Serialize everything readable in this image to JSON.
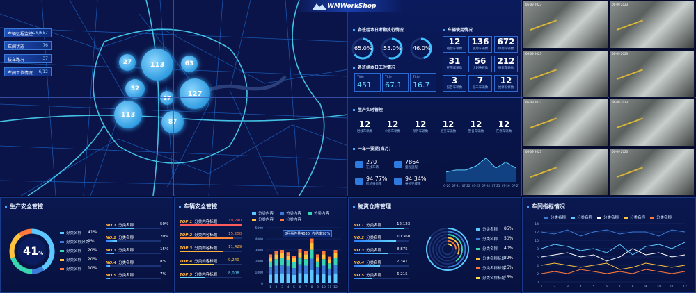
{
  "brand": "WMWorkShop",
  "map": {
    "menu": [
      {
        "label": "车辆远程监控",
        "value": "526/657"
      },
      {
        "label": "车间状态",
        "value": "76"
      },
      {
        "label": "拔车路况",
        "value": "37"
      },
      {
        "label": "车间工位情况",
        "value": "6/12"
      }
    ],
    "bubbles": [
      "27",
      "113",
      "63",
      "52",
      "27",
      "127",
      "113",
      "87"
    ]
  },
  "exec": {
    "title1": "各班组本日考勤执行情况",
    "rings": [
      "65.0%",
      "55.0%",
      "46.0%"
    ],
    "title2": "各班组本日工时情况",
    "boxes": [
      {
        "label": "Title",
        "value": "451"
      },
      {
        "label": "Title",
        "value": "67.1"
      },
      {
        "label": "Title",
        "value": "16.7"
      }
    ]
  },
  "usage": {
    "title": "车辆使用情况",
    "cells": [
      {
        "n": "12",
        "l": "载检车辆数"
      },
      {
        "n": "136",
        "l": "使用车辆数"
      },
      {
        "n": "672",
        "l": "停用车辆数"
      },
      {
        "n": "31",
        "l": "在用车辆数"
      },
      {
        "n": "56",
        "l": "计划维修数"
      },
      {
        "n": "212",
        "l": "报修车辆数"
      },
      {
        "n": "3",
        "l": "报告车辆数"
      },
      {
        "n": "7",
        "l": "返工车辆数"
      },
      {
        "n": "12",
        "l": "维修报修数"
      }
    ]
  },
  "prod": {
    "title": "生产实时管控",
    "cells": [
      {
        "n": "12",
        "l": "进线车辆数"
      },
      {
        "n": "12",
        "l": "小修车辆数"
      },
      {
        "n": "12",
        "l": "保养车辆数"
      },
      {
        "n": "12",
        "l": "验交车辆数"
      },
      {
        "n": "12",
        "l": "整备车辆数"
      },
      {
        "n": "12",
        "l": "在修车辆数"
      }
    ],
    "title2": "一车一要提(当月)",
    "kpis": [
      {
        "n": "270",
        "l": "在线车辆"
      },
      {
        "n": "7864",
        "l": "里程里程"
      },
      {
        "n": "94.77%",
        "l": "检验报修率"
      },
      {
        "n": "94.34%",
        "l": "维修完成率"
      }
    ],
    "area_x": [
      "07-20",
      "07-21",
      "07-22",
      "07-23",
      "07-24",
      "07-25",
      "07-26",
      "07-27"
    ]
  },
  "cams": [
    "06-09 2023",
    "06-09 2023",
    "06-09 2023",
    "06-09 2023",
    "06-09 2023",
    "06-09 2023",
    "06-09 2023",
    "06-09 2023"
  ],
  "safety": {
    "title": "生产安全管控",
    "center": "41",
    "center_unit": "%",
    "legend": [
      {
        "label": "分类名称",
        "value": "41%",
        "color": "#5cc8ff"
      },
      {
        "label": "分类名称分类",
        "value": "9%",
        "color": "#3a7bd8"
      },
      {
        "label": "分类名称",
        "value": "20%",
        "color": "#37d6b0"
      },
      {
        "label": "分类名称",
        "value": "20%",
        "color": "#ffc23c"
      },
      {
        "label": "分类名称",
        "value": "10%",
        "color": "#ff7a3c"
      }
    ],
    "ranks": [
      {
        "no": "NO.1",
        "label": "分类名称",
        "value": "50%",
        "frac": 0.5
      },
      {
        "no": "NO.2",
        "label": "分类名称",
        "value": "20%",
        "frac": 0.2
      },
      {
        "no": "NO.3",
        "label": "分类名称",
        "value": "15%",
        "frac": 0.15
      },
      {
        "no": "NO.4",
        "label": "分类名称",
        "value": "8%",
        "frac": 0.08
      },
      {
        "no": "NO.5",
        "label": "分类名称",
        "value": "7%",
        "frac": 0.07
      }
    ]
  },
  "vehicle": {
    "title": "车辆安全管控",
    "ranks": [
      {
        "no": "TOP 1",
        "label": "分类内容标题",
        "value": "19,240",
        "color": "#ff5a5a"
      },
      {
        "no": "TOP 2",
        "label": "分类内容标题",
        "value": "15,200",
        "color": "#ff8a3c"
      },
      {
        "no": "TOP 3",
        "label": "分类内容标题",
        "value": "11,429",
        "color": "#ffb23c"
      },
      {
        "no": "TOP 4",
        "label": "分类内容标题",
        "value": "9,240",
        "color": "#ffd23c"
      },
      {
        "no": "TOP 5",
        "label": "分类内容标题",
        "value": "8,008",
        "color": "#63d7ff"
      }
    ],
    "legend": [
      "分类内容",
      "分类内容",
      "分类内容",
      "分类内容",
      "分类内容"
    ],
    "tooltip": "8月事件量4030, 办结率98%",
    "yticks": [
      "5000",
      "4000",
      "3000",
      "2000",
      "1000",
      "0"
    ],
    "xticks": [
      "1",
      "2",
      "3",
      "4",
      "5",
      "6",
      "7",
      "8",
      "9",
      "10",
      "11",
      "12"
    ]
  },
  "stock": {
    "title": "物资仓库管理",
    "ranks": [
      {
        "no": "NO.1",
        "label": "分类名称",
        "value": "12,123"
      },
      {
        "no": "NO.2",
        "label": "分类名称",
        "value": "10,360"
      },
      {
        "no": "NO.3",
        "label": "分类名称",
        "value": "8,875"
      },
      {
        "no": "NO.4",
        "label": "分类名称",
        "value": "7,341"
      },
      {
        "no": "NO.5",
        "label": "分类名称",
        "value": "6,215"
      }
    ],
    "legend": [
      {
        "label": "分类名称",
        "value": "85%",
        "color": "#5cc8ff"
      },
      {
        "label": "分类名称",
        "value": "50%",
        "color": "#3a7bd8"
      },
      {
        "label": "分类名称",
        "value": "40%",
        "color": "#37d6b0"
      },
      {
        "label": "分类名称标题",
        "value": "32%",
        "color": "#ffc23c"
      },
      {
        "label": "分类名称标题",
        "value": "25%",
        "color": "#ff7a3c"
      },
      {
        "label": "分类名称标题",
        "value": "15%",
        "color": "#ffe14a"
      }
    ]
  },
  "workshop": {
    "title": "车间指标情况",
    "yticks": [
      "14",
      "12",
      "10",
      "8",
      "6",
      "4",
      "2",
      "0"
    ],
    "xticks": [
      "1",
      "2",
      "3",
      "4",
      "5",
      "6",
      "7",
      "8",
      "9",
      "10",
      "11",
      "12"
    ]
  },
  "chart_data": [
    {
      "type": "area",
      "categories": [
        "07-20",
        "07-21",
        "07-22",
        "07-23",
        "07-24",
        "07-25",
        "07-26",
        "07-27"
      ],
      "values": [
        5,
        6,
        6,
        8,
        12,
        7,
        10,
        7
      ],
      "title": "",
      "xlabel": "",
      "ylabel": ""
    },
    {
      "type": "bar",
      "categories": [
        "1",
        "2",
        "3",
        "4",
        "5",
        "6",
        "7",
        "8",
        "9",
        "10",
        "11",
        "12"
      ],
      "ylim": [
        0,
        5000
      ],
      "series": [
        {
          "name": "分类内容",
          "values": [
            2600,
            2900,
            3000,
            2800,
            2500,
            3100,
            2900,
            4030,
            2600,
            2900,
            2400,
            3000
          ]
        }
      ],
      "title": "",
      "xlabel": "",
      "ylabel": ""
    },
    {
      "type": "line",
      "categories": [
        "1",
        "2",
        "3",
        "4",
        "5",
        "6",
        "7",
        "8",
        "9",
        "10",
        "11",
        "12"
      ],
      "ylim": [
        0,
        14
      ],
      "series": [
        {
          "name": "分类名称",
          "color": "#3a7bd8",
          "values": [
            12,
            11.5,
            12.5,
            11,
            12,
            12.5,
            11.5,
            12,
            12,
            11,
            12.5,
            12
          ]
        },
        {
          "name": "分类名称",
          "color": "#5cc8ff",
          "values": [
            8,
            9,
            8.5,
            7.5,
            8,
            7,
            9,
            6.5,
            8.5,
            9,
            8,
            9.5
          ]
        },
        {
          "name": "分类名称",
          "color": "#ffffff",
          "values": [
            6,
            6.5,
            7,
            6,
            6.5,
            5,
            6,
            8,
            6.5,
            7,
            6,
            6.5
          ]
        },
        {
          "name": "分类名称",
          "color": "#ffc23c",
          "values": [
            4,
            4.5,
            4,
            3.5,
            4,
            4.5,
            3,
            3.5,
            4.5,
            4,
            3.5,
            4
          ]
        },
        {
          "name": "分类名称",
          "color": "#ff7a3c",
          "values": [
            2,
            2.5,
            2,
            3,
            2.5,
            2,
            2.5,
            2,
            3,
            2.5,
            2,
            2.5
          ]
        }
      ],
      "title": "",
      "xlabel": "",
      "ylabel": ""
    }
  ]
}
